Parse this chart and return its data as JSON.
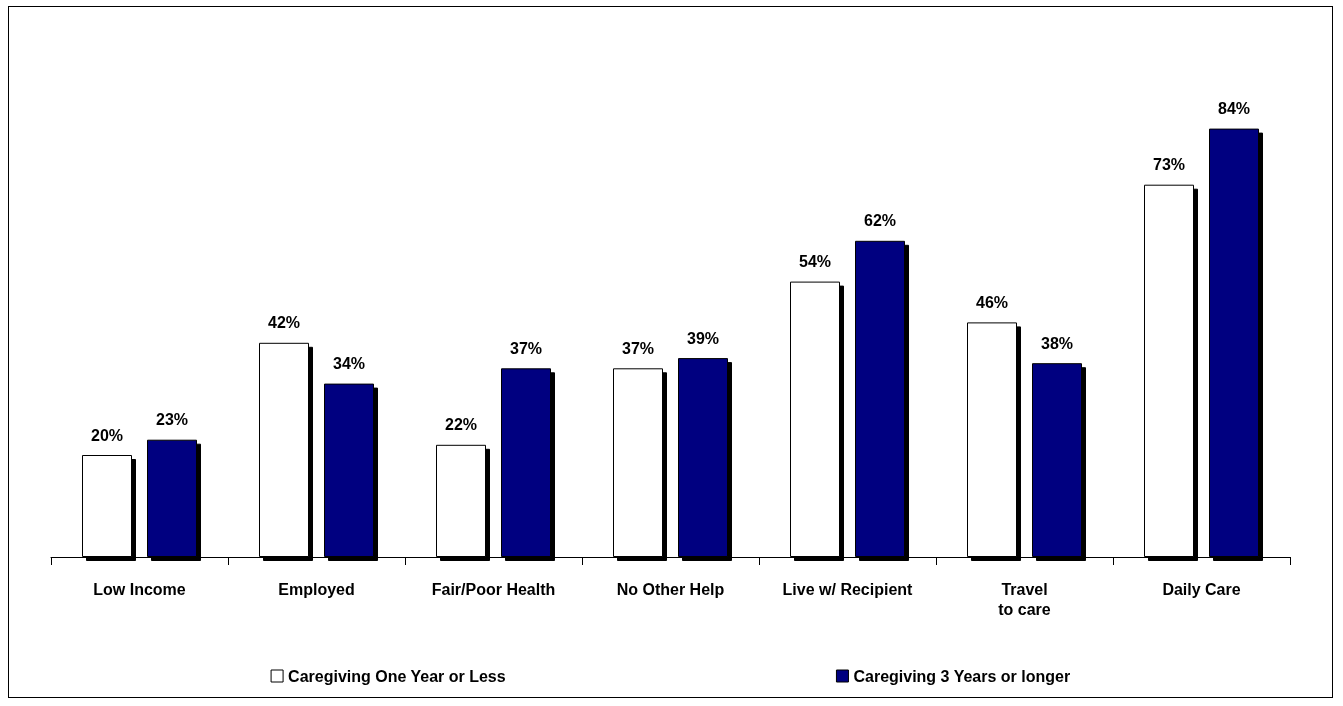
{
  "chart_data": {
    "type": "bar",
    "categories": [
      "Low Income",
      "Employed",
      "Fair/Poor Health",
      "No Other Help",
      "Live w/ Recipient",
      "Travel\nto care",
      "Daily Care"
    ],
    "series": [
      {
        "name": "Caregiving One Year or Less",
        "color": "#ffffff",
        "values": [
          20,
          42,
          22,
          37,
          54,
          46,
          73
        ],
        "value_labels": [
          "20%",
          "42%",
          "22%",
          "37%",
          "54%",
          "46%",
          "73%"
        ]
      },
      {
        "name": "Caregiving 3 Years or longer",
        "color": "#000080",
        "values": [
          23,
          34,
          37,
          39,
          62,
          38,
          84
        ],
        "value_labels": [
          "23%",
          "34%",
          "37%",
          "39%",
          "62%",
          "38%",
          "84%"
        ]
      }
    ],
    "legend": "bottom",
    "grid": false
  }
}
